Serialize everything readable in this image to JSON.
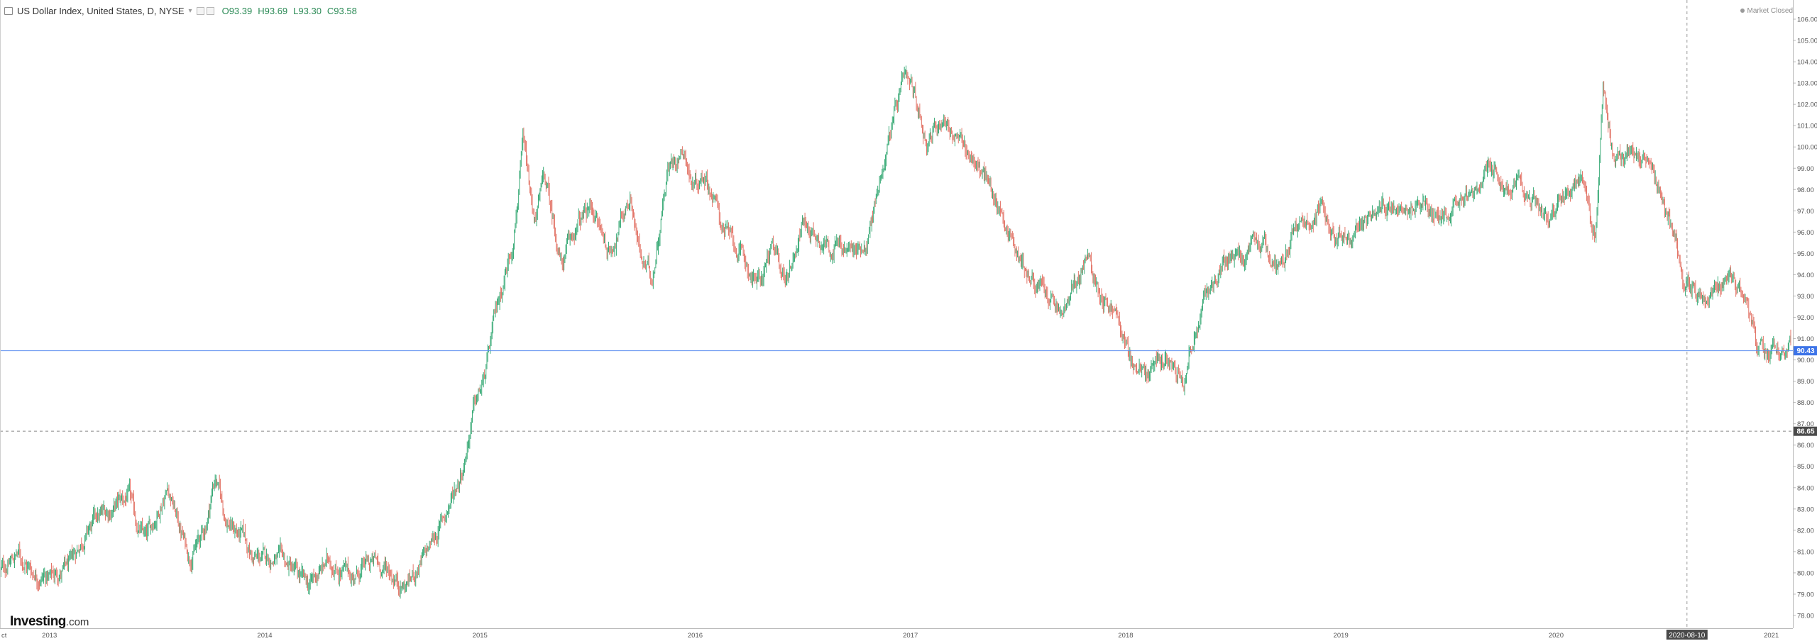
{
  "header": {
    "title": "US Dollar Index, United States, D, NYSE",
    "open": "O93.39",
    "high": "H93.69",
    "low": "L93.30",
    "close": "C93.58"
  },
  "market_status": "Market Closed",
  "logo": {
    "main": "Investing",
    "suffix": ".com"
  },
  "chart_data": {
    "type": "candlestick",
    "y_ticks": [
      "78.00",
      "79.00",
      "80.00",
      "81.00",
      "82.00",
      "83.00",
      "84.00",
      "85.00",
      "86.00",
      "87.00",
      "88.00",
      "89.00",
      "90.00",
      "91.00",
      "92.00",
      "93.00",
      "94.00",
      "95.00",
      "96.00",
      "97.00",
      "98.00",
      "99.00",
      "100.00",
      "101.00",
      "102.00",
      "103.00",
      "104.00",
      "105.00",
      "106.00"
    ],
    "x_ticks": [
      {
        "label": "ct",
        "year": 2012.78
      },
      {
        "label": "2013",
        "year": 2013.0
      },
      {
        "label": "2014",
        "year": 2014.0
      },
      {
        "label": "2015",
        "year": 2015.0
      },
      {
        "label": "2016",
        "year": 2016.0
      },
      {
        "label": "2017",
        "year": 2017.0
      },
      {
        "label": "2018",
        "year": 2018.0
      },
      {
        "label": "2019",
        "year": 2019.0
      },
      {
        "label": "2020",
        "year": 2020.0
      },
      {
        "label": "2021",
        "year": 2021.0
      }
    ],
    "x_range": [
      2012.77,
      2021.1
    ],
    "y_range": [
      77.4,
      106.9
    ],
    "current_price": {
      "value": 90.43,
      "label": "90.43"
    },
    "crosshair": {
      "price": 86.65,
      "price_label": "86.65",
      "date": "2020-08-10"
    },
    "colors": {
      "up": "#26a269",
      "down": "#e0685a",
      "price_line": "#5b8ef0",
      "price_label_bg": "#3d74e8",
      "crosshair_label_bg": "#4a4a4a"
    },
    "path": [
      [
        2012.77,
        80.0
      ],
      [
        2012.85,
        80.9
      ],
      [
        2012.92,
        80.1
      ],
      [
        2013.0,
        79.8
      ],
      [
        2013.1,
        80.3
      ],
      [
        2013.15,
        81.6
      ],
      [
        2013.22,
        82.5
      ],
      [
        2013.3,
        83.1
      ],
      [
        2013.37,
        83.6
      ],
      [
        2013.4,
        82.3
      ],
      [
        2013.45,
        81.5
      ],
      [
        2013.55,
        84.2
      ],
      [
        2013.6,
        82.3
      ],
      [
        2013.65,
        80.8
      ],
      [
        2013.72,
        81.9
      ],
      [
        2013.77,
        84.6
      ],
      [
        2013.82,
        82.5
      ],
      [
        2013.9,
        81.6
      ],
      [
        2013.95,
        80.6
      ],
      [
        2014.05,
        80.7
      ],
      [
        2014.12,
        80.2
      ],
      [
        2014.2,
        79.3
      ],
      [
        2014.3,
        80.6
      ],
      [
        2014.4,
        79.8
      ],
      [
        2014.5,
        80.5
      ],
      [
        2014.58,
        80.1
      ],
      [
        2014.65,
        79.4
      ],
      [
        2014.75,
        80.8
      ],
      [
        2014.85,
        83.0
      ],
      [
        2014.92,
        85.0
      ],
      [
        2014.97,
        87.7
      ],
      [
        2015.02,
        89.0
      ],
      [
        2015.08,
        92.5
      ],
      [
        2015.15,
        95.5
      ],
      [
        2015.2,
        100.1
      ],
      [
        2015.25,
        96.4
      ],
      [
        2015.3,
        98.5
      ],
      [
        2015.38,
        94.5
      ],
      [
        2015.45,
        96.2
      ],
      [
        2015.52,
        97.2
      ],
      [
        2015.6,
        95.0
      ],
      [
        2015.7,
        97.8
      ],
      [
        2015.75,
        94.6
      ],
      [
        2015.8,
        93.8
      ],
      [
        2015.87,
        99.0
      ],
      [
        2015.95,
        100.1
      ],
      [
        2015.98,
        98.3
      ],
      [
        2016.05,
        98.8
      ],
      [
        2016.12,
        96.5
      ],
      [
        2016.2,
        95.0
      ],
      [
        2016.25,
        94.2
      ],
      [
        2016.3,
        93.5
      ],
      [
        2016.35,
        95.2
      ],
      [
        2016.42,
        93.8
      ],
      [
        2016.5,
        96.5
      ],
      [
        2016.55,
        96.0
      ],
      [
        2016.62,
        95.5
      ],
      [
        2016.7,
        95.2
      ],
      [
        2016.75,
        95.0
      ],
      [
        2016.8,
        95.8
      ],
      [
        2016.85,
        98.0
      ],
      [
        2016.9,
        100.6
      ],
      [
        2016.97,
        102.9
      ],
      [
        2017.02,
        102.2
      ],
      [
        2017.08,
        100.3
      ],
      [
        2017.15,
        101.5
      ],
      [
        2017.22,
        100.2
      ],
      [
        2017.3,
        99.4
      ],
      [
        2017.35,
        98.5
      ],
      [
        2017.42,
        97.0
      ],
      [
        2017.5,
        95.0
      ],
      [
        2017.58,
        93.5
      ],
      [
        2017.65,
        92.8
      ],
      [
        2017.7,
        92.0
      ],
      [
        2017.75,
        93.0
      ],
      [
        2017.82,
        94.8
      ],
      [
        2017.88,
        93.2
      ],
      [
        2017.95,
        92.3
      ],
      [
        2018.02,
        90.0
      ],
      [
        2018.1,
        89.2
      ],
      [
        2018.15,
        89.9
      ],
      [
        2018.22,
        90.1
      ],
      [
        2018.27,
        89.4
      ],
      [
        2018.32,
        91.3
      ],
      [
        2018.37,
        92.8
      ],
      [
        2018.45,
        94.5
      ],
      [
        2018.55,
        94.8
      ],
      [
        2018.62,
        95.3
      ],
      [
        2018.7,
        94.5
      ],
      [
        2018.8,
        96.3
      ],
      [
        2018.9,
        97.1
      ],
      [
        2018.97,
        96.1
      ],
      [
        2019.05,
        95.8
      ],
      [
        2019.12,
        96.5
      ],
      [
        2019.2,
        97.0
      ],
      [
        2019.28,
        97.6
      ],
      [
        2019.38,
        97.4
      ],
      [
        2019.45,
        96.5
      ],
      [
        2019.55,
        97.9
      ],
      [
        2019.62,
        97.8
      ],
      [
        2019.7,
        98.8
      ],
      [
        2019.78,
        98.0
      ],
      [
        2019.85,
        97.8
      ],
      [
        2019.92,
        97.3
      ],
      [
        2019.97,
        96.7
      ],
      [
        2020.05,
        97.5
      ],
      [
        2020.12,
        98.7
      ],
      [
        2020.18,
        95.6
      ],
      [
        2020.22,
        102.8
      ],
      [
        2020.27,
        99.2
      ],
      [
        2020.35,
        99.8
      ],
      [
        2020.42,
        99.5
      ],
      [
        2020.47,
        97.6
      ],
      [
        2020.55,
        95.8
      ],
      [
        2020.6,
        93.8
      ],
      [
        2020.68,
        93.0
      ],
      [
        2020.75,
        93.4
      ],
      [
        2020.8,
        94.3
      ],
      [
        2020.87,
        92.8
      ],
      [
        2020.93,
        91.0
      ],
      [
        2020.98,
        89.9
      ],
      [
        2021.02,
        90.3
      ],
      [
        2021.05,
        90.6
      ],
      [
        2021.09,
        91.0
      ]
    ]
  }
}
